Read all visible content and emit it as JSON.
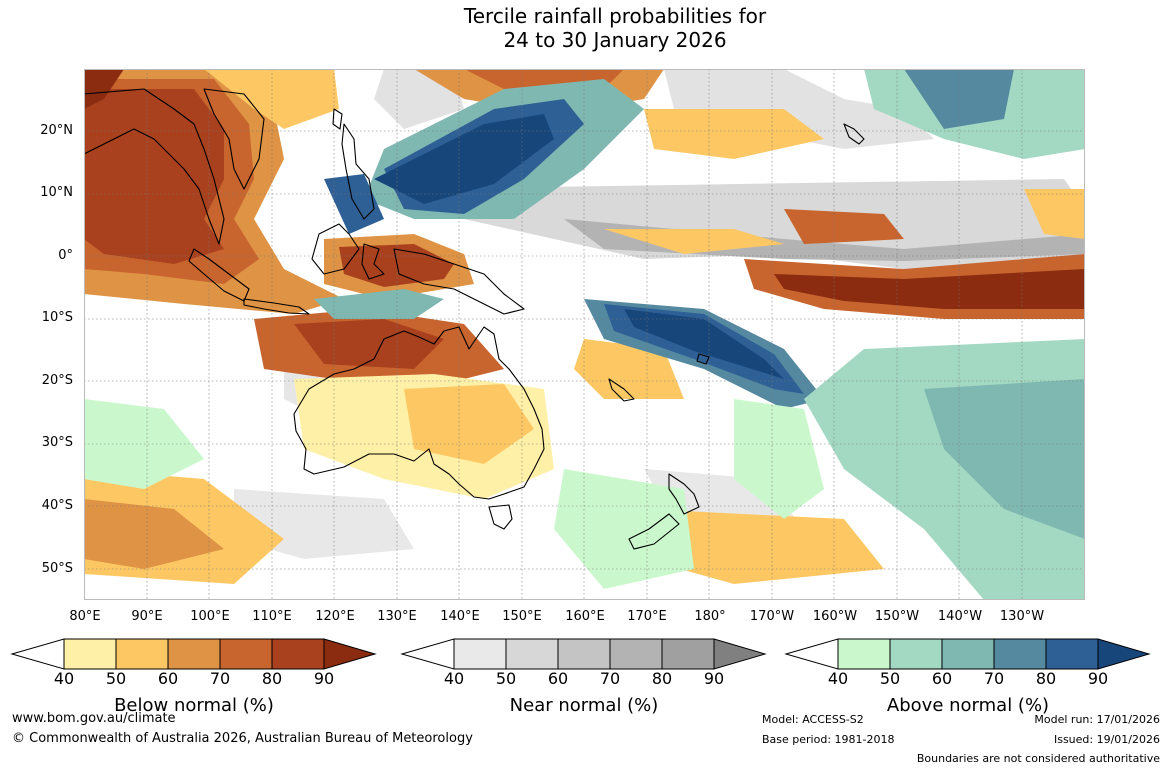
{
  "title": {
    "line1": "Tercile rainfall probabilities for",
    "line2": "24 to 30 January 2026"
  },
  "map": {
    "latitude_labels": [
      "20°N",
      "10°N",
      "0°",
      "10°S",
      "20°S",
      "30°S",
      "40°S",
      "50°S"
    ],
    "longitude_labels": [
      "80°E",
      "90°E",
      "100°E",
      "110°E",
      "120°E",
      "130°E",
      "140°E",
      "150°E",
      "160°E",
      "170°E",
      "180°",
      "170°W",
      "160°W",
      "150°W",
      "140°W",
      "130°W"
    ],
    "extent": {
      "lon_min": 80,
      "lon_max": 240,
      "lat_min": -55,
      "lat_max": 30
    }
  },
  "legends": [
    {
      "title": "Below normal (%)",
      "ticks": [
        "40",
        "50",
        "60",
        "70",
        "80",
        "90"
      ],
      "colors": [
        "#fff0a8",
        "#fdc864",
        "#df9344",
        "#c8642d",
        "#a9411e",
        "#8b2b10"
      ]
    },
    {
      "title": "Near normal (%)",
      "ticks": [
        "40",
        "50",
        "60",
        "70",
        "80",
        "90"
      ],
      "colors": [
        "#e9e9e9",
        "#d7d7d7",
        "#c4c4c4",
        "#b3b3b3",
        "#a0a0a0",
        "#808080"
      ]
    },
    {
      "title": "Above normal (%)",
      "ticks": [
        "40",
        "50",
        "60",
        "70",
        "80",
        "90"
      ],
      "colors": [
        "#caf8cc",
        "#a3d9c3",
        "#7fb8b1",
        "#5489a0",
        "#2e6096",
        "#17467b"
      ]
    }
  ],
  "footer": {
    "url": "www.bom.gov.au/climate",
    "copyright": "© Commonwealth of Australia 2026, Australian Bureau of Meteorology",
    "model": "Model: ACCESS-S2",
    "base_period": "Base period: 1981-2018",
    "model_run": "Model run: 17/01/2026",
    "issued": "Issued: 19/01/2026",
    "disclaimer": "Boundaries are not considered authoritative"
  }
}
